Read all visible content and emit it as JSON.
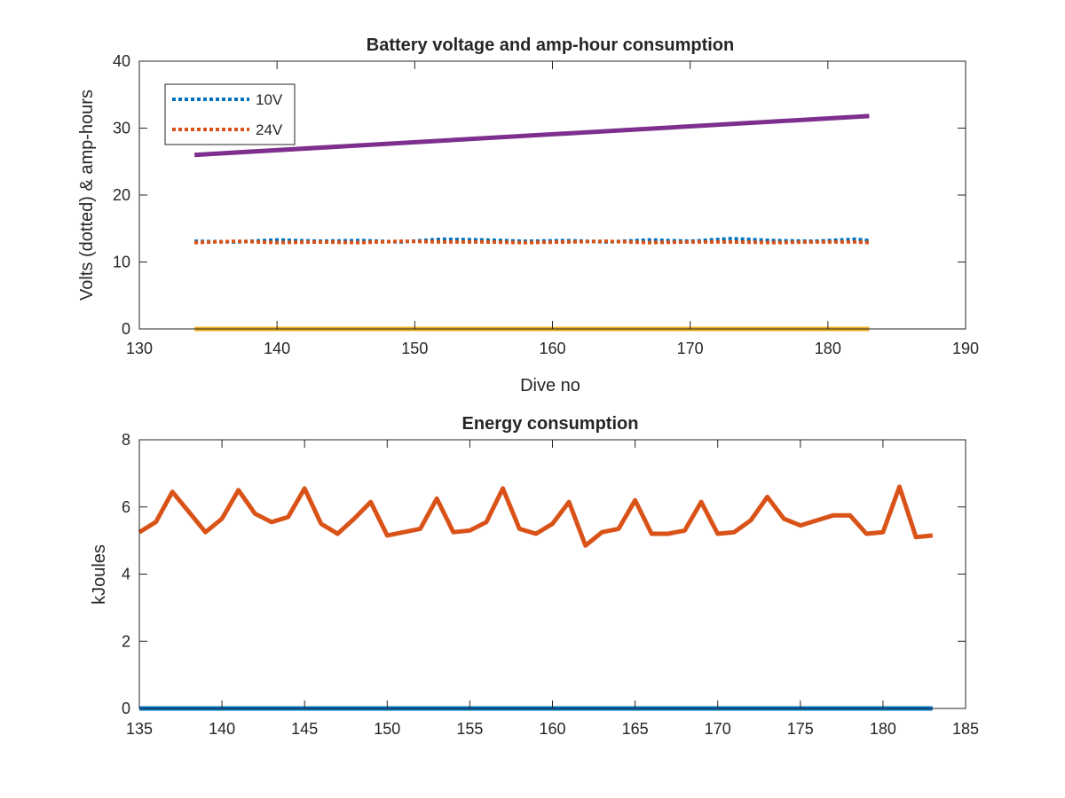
{
  "chart_data": [
    {
      "type": "line",
      "title": "Battery voltage and amp-hour consumption",
      "xlabel": "Dive no",
      "ylabel": "Volts (dotted) & amp-hours",
      "xlim": [
        130,
        190
      ],
      "ylim": [
        0,
        40
      ],
      "xticks": [
        130,
        140,
        150,
        160,
        170,
        180,
        190
      ],
      "yticks": [
        0,
        10,
        20,
        30,
        40
      ],
      "grid": false,
      "legend_position": "top-left",
      "legend": [
        "10V",
        "24V"
      ],
      "series": [
        {
          "name": "10V",
          "style": "dotted",
          "color": "#0072BD",
          "x": [
            134,
            137,
            140,
            143,
            146,
            149,
            152,
            155,
            158,
            161,
            164,
            167,
            170,
            173,
            176,
            179,
            182,
            183
          ],
          "y": [
            13.1,
            13.0,
            13.3,
            13.1,
            13.2,
            13.0,
            13.4,
            13.3,
            13.1,
            13.2,
            13.0,
            13.3,
            13.1,
            13.5,
            13.2,
            13.1,
            13.4,
            13.2
          ]
        },
        {
          "name": "24V",
          "style": "dotted",
          "color": "#D95319",
          "x": [
            134,
            137,
            140,
            143,
            146,
            149,
            152,
            155,
            158,
            161,
            164,
            167,
            170,
            173,
            176,
            179,
            182,
            183
          ],
          "y": [
            12.9,
            13.1,
            12.9,
            13.0,
            12.9,
            13.1,
            13.0,
            13.0,
            12.9,
            13.0,
            13.1,
            12.9,
            13.0,
            13.0,
            12.9,
            13.0,
            13.0,
            12.9
          ]
        },
        {
          "style": "solid",
          "color": "#7E2F8E",
          "x": [
            134,
            183
          ],
          "y": [
            26.0,
            31.8
          ]
        },
        {
          "style": "solid",
          "color": "#EDB120",
          "x": [
            134,
            183
          ],
          "y": [
            0,
            0
          ]
        }
      ]
    },
    {
      "type": "line",
      "title": "Energy consumption",
      "xlabel": "",
      "ylabel": "kJoules",
      "xlim": [
        135,
        185
      ],
      "ylim": [
        0,
        8
      ],
      "xticks": [
        135,
        140,
        145,
        150,
        155,
        160,
        165,
        170,
        175,
        180,
        185
      ],
      "yticks": [
        0,
        2,
        4,
        6,
        8
      ],
      "grid": false,
      "series": [
        {
          "style": "solid",
          "color": "#D95319",
          "x": [
            135,
            136,
            137,
            138,
            139,
            140,
            141,
            142,
            143,
            144,
            145,
            146,
            147,
            148,
            149,
            150,
            151,
            152,
            153,
            154,
            155,
            156,
            157,
            158,
            159,
            160,
            161,
            162,
            163,
            164,
            165,
            166,
            167,
            168,
            169,
            170,
            171,
            172,
            173,
            174,
            175,
            176,
            177,
            178,
            179,
            180,
            181,
            182,
            183
          ],
          "y": [
            5.25,
            5.55,
            6.45,
            5.85,
            5.25,
            5.65,
            6.5,
            5.8,
            5.55,
            5.7,
            6.55,
            5.5,
            5.2,
            5.65,
            6.15,
            5.15,
            5.25,
            5.35,
            6.25,
            5.25,
            5.3,
            5.55,
            6.55,
            5.35,
            5.2,
            5.5,
            6.15,
            4.85,
            5.25,
            5.35,
            6.2,
            5.2,
            5.2,
            5.3,
            6.15,
            5.2,
            5.25,
            5.6,
            6.3,
            5.65,
            5.45,
            5.6,
            5.75,
            5.75,
            5.2,
            5.25,
            6.6,
            5.1,
            5.15
          ]
        },
        {
          "style": "solid",
          "color": "#0072BD",
          "x": [
            135,
            183
          ],
          "y": [
            0,
            0
          ]
        }
      ]
    }
  ]
}
